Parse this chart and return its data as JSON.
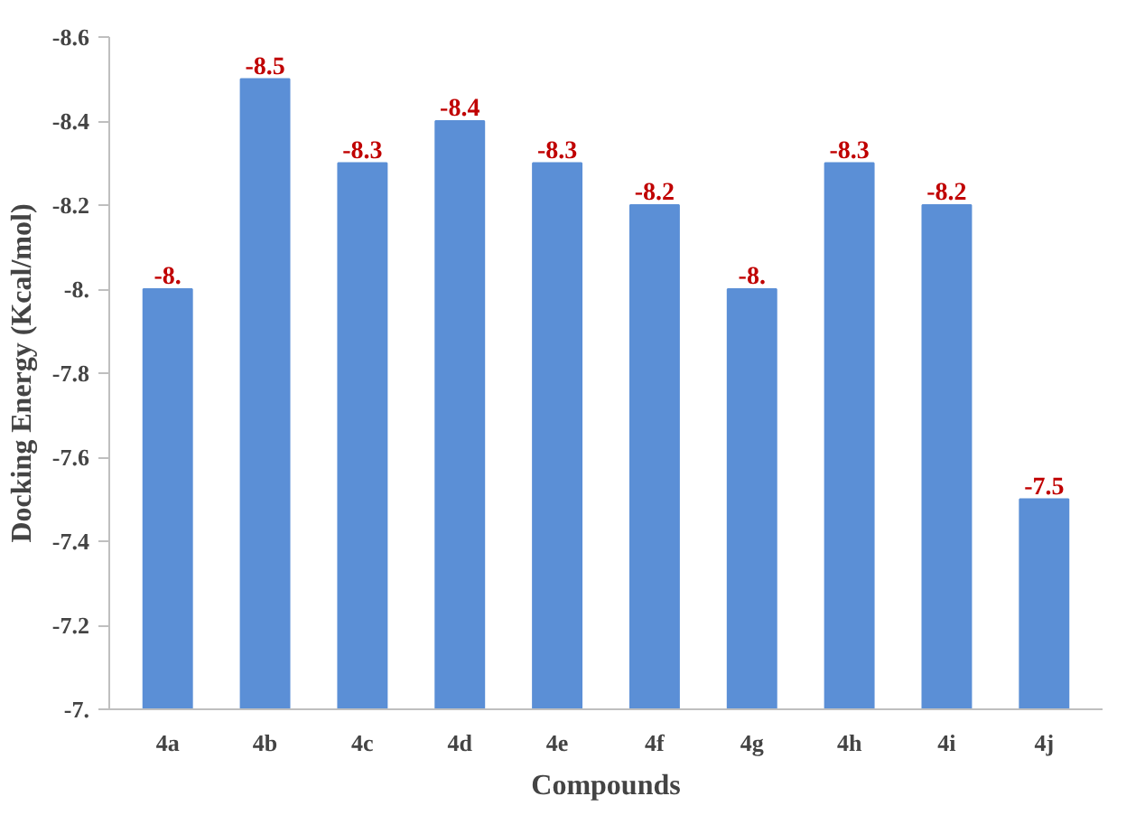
{
  "chart_data": {
    "type": "bar",
    "xlabel": "Compounds",
    "ylabel": "Docking Energy (Kcal/mol)",
    "categories": [
      "4a",
      "4b",
      "4c",
      "4d",
      "4e",
      "4f",
      "4g",
      "4h",
      "4i",
      "4j"
    ],
    "values": [
      -8,
      -8.5,
      -8.3,
      -8.4,
      -8.3,
      -8.2,
      -8,
      -8.3,
      -8.2,
      -7.5
    ],
    "value_labels": [
      "-8.",
      "-8.5",
      "-8.3",
      "-8.4",
      "-8.3",
      "-8.2",
      "-8.",
      "-8.3",
      "-8.2",
      "-7.5"
    ],
    "color": "#5b8fd6",
    "ylim": [
      -7,
      -8.6
    ],
    "yticks": [
      {
        "value": -7,
        "label": "-7."
      },
      -7.2,
      -7.4,
      -7.6,
      -7.8,
      {
        "value": -8,
        "label": "-8."
      },
      -8.2,
      -8.4,
      -8.6
    ],
    "grid": false
  }
}
